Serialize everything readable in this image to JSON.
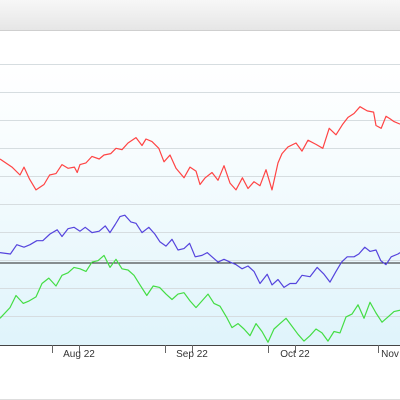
{
  "chart_data": {
    "type": "line",
    "title": "",
    "xlabel": "",
    "ylabel": "",
    "x_ticks": [
      "Aug 22",
      "Sep 22",
      "Oct 22",
      "Nov"
    ],
    "y_range": [
      0,
      100
    ],
    "grid": true,
    "legend": "none",
    "reference_line": 29.2,
    "x_range": [
      0,
      100
    ],
    "series": [
      {
        "color": "#ff4444",
        "x": [
          0,
          3,
          5,
          6,
          7.4,
          9,
          11,
          12.4,
          14,
          15.5,
          17,
          18.6,
          19.3,
          20,
          21.5,
          23,
          24.8,
          26,
          27.7,
          29,
          30.5,
          32,
          34,
          35.5,
          36.5,
          38,
          39.7,
          41,
          42.5,
          44,
          46,
          47.5,
          49,
          50,
          51.3,
          53,
          54.5,
          56,
          57.5,
          59,
          60.6,
          62,
          63.5,
          65,
          66.5,
          68,
          69.5,
          70.5,
          72,
          74,
          75.5,
          77,
          79,
          80.7,
          82.3,
          84,
          85.7,
          87,
          88.5,
          90,
          91.8,
          93.4,
          94,
          95.3,
          96.5,
          97.5,
          98.5,
          100
        ],
        "values": [
          66.2,
          63.3,
          60.5,
          63.3,
          59.0,
          55.2,
          57.1,
          60.5,
          61.0,
          64.2,
          62.9,
          63.3,
          61.4,
          64.2,
          64.8,
          67.1,
          66.2,
          67.6,
          68.1,
          70.0,
          69.5,
          71.9,
          73.8,
          71.0,
          73.3,
          72.4,
          70.0,
          65.2,
          67.6,
          62.9,
          59.5,
          63.3,
          61.9,
          57.1,
          59.5,
          61.4,
          58.6,
          63.8,
          57.6,
          55.2,
          59.5,
          55.7,
          58.1,
          56.7,
          62.4,
          55.2,
          64.8,
          68.1,
          70.5,
          71.9,
          69.0,
          72.9,
          71.4,
          70.0,
          77.1,
          74.8,
          78.6,
          81.0,
          82.4,
          84.8,
          83.3,
          82.9,
          78.1,
          77.1,
          81.4,
          80.5,
          79.5,
          78.6
        ]
      },
      {
        "color": "#5544dd",
        "x": [
          0,
          2.6,
          4.2,
          6,
          7.5,
          9.2,
          10.7,
          12.5,
          14.3,
          15.5,
          17,
          18.5,
          20,
          21.3,
          23,
          24.8,
          26.3,
          27.5,
          28.8,
          30,
          31.2,
          32.7,
          34,
          35.5,
          37.2,
          38.7,
          40,
          41.5,
          43,
          44.5,
          46,
          47.4,
          48.8,
          50.5,
          51.8,
          53,
          54.5,
          56,
          57.5,
          59,
          60.5,
          62,
          63.5,
          65,
          66.8,
          68,
          69.5,
          71,
          72.5,
          74,
          75.5,
          77.5,
          79.3,
          81,
          82.5,
          84,
          85.4,
          86.8,
          88.5,
          89.7,
          91.2,
          92.5,
          94,
          95.2,
          96.5,
          97.8,
          99.5,
          100
        ],
        "values": [
          32.9,
          32.4,
          35.7,
          34.8,
          35.7,
          37.1,
          37.1,
          39.5,
          41.0,
          38.6,
          41.4,
          41.9,
          40.5,
          41.9,
          40.0,
          40.5,
          42.4,
          40.0,
          42.9,
          45.7,
          46.2,
          43.8,
          43.3,
          40.0,
          41.9,
          39.5,
          36.7,
          35.2,
          37.6,
          33.8,
          34.3,
          36.2,
          31.4,
          31.9,
          32.9,
          31.4,
          29.5,
          30.5,
          29.5,
          28.6,
          27.1,
          28.1,
          26.2,
          21.9,
          25.2,
          21.4,
          23.3,
          20.5,
          21.9,
          21.9,
          24.8,
          24.3,
          27.6,
          25.2,
          22.4,
          26.2,
          29.5,
          31.4,
          31.4,
          32.4,
          34.8,
          33.3,
          33.8,
          30.0,
          28.6,
          31.4,
          32.4,
          32.9
        ]
      },
      {
        "color": "#44dd44",
        "x": [
          0,
          2.5,
          4,
          5.8,
          7.3,
          9,
          10.5,
          12.2,
          14,
          15.5,
          17,
          18.5,
          20,
          21.5,
          23,
          24.5,
          26,
          27.5,
          29,
          30.5,
          32,
          33.5,
          35,
          36.7,
          38.3,
          39.9,
          41.5,
          43,
          44.5,
          46,
          47.5,
          49,
          50.5,
          52,
          53.5,
          55,
          56.6,
          58,
          59.5,
          61,
          62.5,
          64,
          65.5,
          67,
          68.5,
          70,
          71.5,
          73,
          74.5,
          76,
          77.5,
          79,
          80.5,
          82,
          83.5,
          85,
          86.5,
          88,
          89.5,
          91,
          92.5,
          94,
          95.5,
          97,
          98.5,
          100
        ],
        "values": [
          9.5,
          13.3,
          17.6,
          14.8,
          15.7,
          17.1,
          21.9,
          23.8,
          21.0,
          24.8,
          25.7,
          27.6,
          27.1,
          26.2,
          29.5,
          30.0,
          31.9,
          27.6,
          30.5,
          27.1,
          26.7,
          24.8,
          21.4,
          17.6,
          21.0,
          20.5,
          18.1,
          16.2,
          18.1,
          18.6,
          15.7,
          13.3,
          15.7,
          18.1,
          14.8,
          13.8,
          10.0,
          6.2,
          7.6,
          5.7,
          3.3,
          7.6,
          4.8,
          1.0,
          5.7,
          7.6,
          9.5,
          6.7,
          3.8,
          1.4,
          3.3,
          5.7,
          4.3,
          1.4,
          4.8,
          4.3,
          10.0,
          11.0,
          14.3,
          9.5,
          15.2,
          11.4,
          8.1,
          10.0,
          11.9,
          12.4
        ]
      }
    ]
  }
}
